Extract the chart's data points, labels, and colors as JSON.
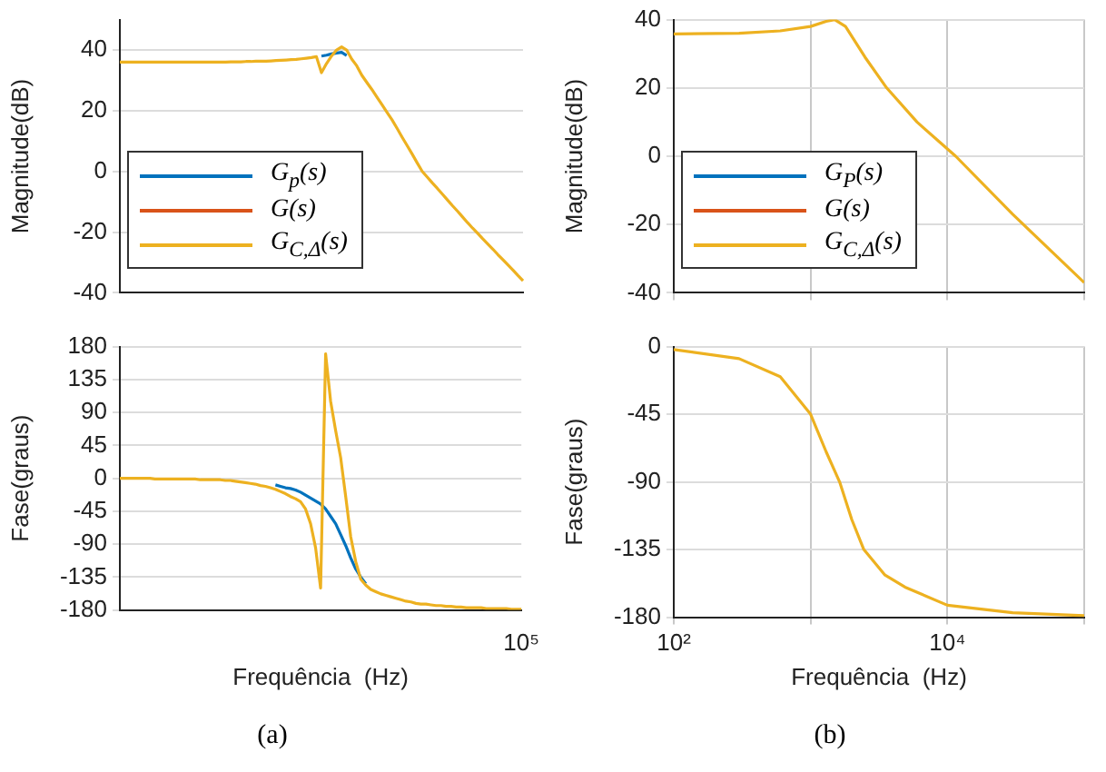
{
  "chart_data": [
    {
      "type": "line",
      "ylabel": "Magnitude(dB)",
      "categories": [
        null,
        null,
        null,
        null,
        null,
        null,
        null,
        null,
        null,
        null,
        null,
        null,
        null,
        null,
        null,
        null,
        null,
        null,
        null,
        null,
        null,
        null,
        null,
        null,
        null,
        null,
        null,
        null,
        null,
        null,
        null,
        null,
        null,
        null,
        null,
        null,
        null,
        null,
        null,
        null,
        null,
        null,
        null,
        null,
        null,
        null,
        null,
        null,
        null,
        null,
        null,
        null,
        null,
        null,
        null,
        null,
        null,
        null,
        null,
        null,
        null,
        null,
        null,
        null,
        null,
        null,
        null,
        null,
        null,
        null,
        null,
        null,
        null,
        null,
        null,
        null,
        null,
        null,
        null,
        null,
        null
      ],
      "ylim": [
        -40,
        50
      ],
      "yticks": [
        -40,
        -20,
        0,
        20,
        40
      ],
      "grid": "y",
      "legend": "bottom left",
      "marker": "none",
      "line_style": "solid",
      "tick_labels": "y",
      "series": [
        {
          "name": "G$_{p}$(s)",
          "color": "#0072bd",
          "values": [
            null,
            null,
            null,
            null,
            null,
            null,
            null,
            null,
            null,
            null,
            null,
            null,
            null,
            null,
            null,
            null,
            null,
            null,
            null,
            null,
            null,
            null,
            null,
            null,
            null,
            null,
            null,
            null,
            null,
            null,
            null,
            null,
            null,
            null,
            null,
            null,
            null,
            null,
            null,
            null,
            38,
            38.3,
            38.7,
            39,
            39.2,
            38.2,
            null,
            null,
            null,
            null,
            null,
            null,
            null,
            null,
            null,
            null,
            null,
            null,
            null,
            null,
            null,
            null,
            null,
            null,
            null,
            null,
            null,
            null,
            null,
            null,
            null,
            null,
            null,
            null,
            null,
            null,
            null,
            null,
            null,
            null,
            null
          ]
        },
        {
          "name": "G(s)",
          "color": "#d95319",
          "values": [
            null,
            null,
            null,
            null,
            null,
            null,
            null,
            null,
            null,
            null,
            null,
            null,
            null,
            null,
            null,
            null,
            null,
            null,
            null,
            null,
            null,
            null,
            null,
            null,
            null,
            null,
            null,
            null,
            null,
            null,
            null,
            null,
            null,
            null,
            null,
            null,
            null,
            null,
            null,
            null,
            null,
            null,
            null,
            null,
            null,
            null,
            null,
            null,
            null,
            null,
            null,
            null,
            null,
            null,
            null,
            null,
            null,
            null,
            null,
            null,
            null,
            null,
            null,
            null,
            null,
            null,
            null,
            null,
            null,
            null,
            null,
            null,
            null,
            null,
            null,
            null,
            null,
            null,
            null,
            null,
            null
          ]
        },
        {
          "name": "G$_{C,Δ}$(s)",
          "color": "#edb120",
          "values": [
            36,
            36,
            36,
            36,
            36,
            36,
            36,
            36,
            36,
            36,
            36,
            36,
            36,
            36,
            36,
            36,
            36,
            36,
            36,
            36,
            36,
            36,
            36.1,
            36.1,
            36.1,
            36.2,
            36.2,
            36.3,
            36.3,
            36.3,
            36.4,
            36.5,
            36.6,
            36.7,
            36.8,
            36.9,
            37.1,
            37.3,
            37.5,
            37.8,
            32.5,
            35.5,
            38,
            40,
            41,
            40,
            37,
            34.8,
            31.7,
            29.3,
            27,
            24.5,
            22,
            19.5,
            17,
            14.2,
            11.3,
            8.5,
            5.7,
            2.8,
            0,
            -1.9,
            -3.8,
            -5.6,
            -7.5,
            -9.4,
            -11.3,
            -13.1,
            -15,
            -16.9,
            -18.7,
            -20.4,
            -22.2,
            -23.9,
            -25.6,
            -27.4,
            -29.1,
            -30.8,
            -32.5,
            -34.3,
            -36
          ]
        }
      ]
    },
    {
      "type": "line",
      "xlabel": "Frequência  (Hz)",
      "ylabel": "Fase(graus)",
      "annotations": [
        "(a)"
      ],
      "categories": [
        null,
        null,
        null,
        null,
        null,
        null,
        null,
        null,
        null,
        null,
        null,
        null,
        null,
        null,
        null,
        null,
        null,
        null,
        null,
        null,
        null,
        null,
        null,
        null,
        null,
        null,
        null,
        null,
        null,
        null,
        null,
        null,
        null,
        null,
        null,
        null,
        null,
        null,
        null,
        null,
        null,
        null,
        null,
        null,
        null,
        null,
        null,
        null,
        null,
        null,
        null,
        null,
        null,
        null,
        null,
        null,
        null,
        null,
        null,
        null,
        null,
        null,
        null,
        null,
        null,
        null,
        null,
        null,
        null,
        null,
        null,
        null,
        null,
        null,
        null,
        null,
        null,
        null,
        null,
        null,
        "10⁵"
      ],
      "ylim": [
        -180,
        180
      ],
      "yticks": [
        -180,
        -135,
        -90,
        -45,
        0,
        45,
        90,
        135,
        180
      ],
      "grid": "y",
      "marker": "none",
      "line_style": "solid",
      "series": [
        {
          "color": "#0072bd",
          "values": [
            null,
            null,
            null,
            null,
            null,
            null,
            null,
            null,
            null,
            null,
            null,
            null,
            null,
            null,
            null,
            null,
            null,
            null,
            null,
            null,
            null,
            null,
            null,
            null,
            null,
            null,
            null,
            null,
            null,
            null,
            null,
            -9,
            -11,
            -13,
            -14,
            -16,
            -19,
            -23,
            -27,
            -31,
            -35,
            -42,
            -52,
            -62,
            -77,
            -92,
            -109,
            -124,
            -135,
            -144,
            null,
            null,
            null,
            null,
            null,
            null,
            null,
            null,
            null,
            null,
            null,
            null,
            null,
            null,
            null,
            null,
            null,
            null,
            null,
            null,
            null,
            null,
            null,
            null,
            null,
            null,
            null,
            null,
            null,
            null,
            null
          ]
        },
        {
          "color": "#edb120",
          "values": [
            0,
            0,
            0,
            0,
            0,
            0,
            0,
            -1,
            -1,
            -1,
            -1,
            -1,
            -1,
            -1,
            -1,
            -1,
            -2,
            -2,
            -2,
            -2,
            -2,
            -3,
            -3,
            -4,
            -5,
            -6,
            -7,
            -8,
            -10,
            -11,
            -13,
            -15,
            -18,
            -21,
            -25,
            -28,
            -32,
            -42,
            -62,
            -95,
            -150,
            170,
            105,
            65,
            28,
            -25,
            -80,
            -114,
            -138,
            -146,
            -152,
            -155,
            -158,
            -160,
            -162,
            -164,
            -166,
            -168,
            -169,
            -171,
            -172,
            -172,
            -173,
            -174,
            -174,
            -175,
            -175,
            -176,
            -176,
            -177,
            -177,
            -177,
            -177,
            -178,
            -178,
            -178,
            -178,
            -178,
            -179,
            -179,
            -179
          ]
        }
      ]
    },
    {
      "type": "line",
      "ylabel": "Magnitude(dB)",
      "log": "x",
      "xlim": [
        100,
        100000
      ],
      "xticks": [
        {
          "value": 100,
          "label": null
        },
        {
          "value": 1000,
          "label": null
        },
        {
          "value": 10000,
          "label": null
        },
        {
          "value": 100000,
          "label": null
        }
      ],
      "ylim": [
        -40,
        40
      ],
      "yticks": [
        -40,
        -20,
        0,
        20,
        40
      ],
      "grid": true,
      "legend": "bottom left",
      "marker": "none",
      "line_style": "solid",
      "tick_labels": "y",
      "series": [
        {
          "name": "G$_{P}$(s)",
          "color": "#0072bd",
          "values": [
            null,
            null
          ]
        },
        {
          "name": "G(s)",
          "color": "#d95319",
          "values": [
            null,
            null
          ]
        },
        {
          "name": "G$_{C,Δ}$(s)",
          "color": "#edb120",
          "x": [
            100,
            300,
            600,
            1000,
            1300,
            1500,
            1800,
            2500,
            3600,
            6000,
            11500,
            30000,
            100000
          ],
          "values": [
            35.8,
            36,
            36.7,
            38,
            39.5,
            40,
            38,
            29,
            20,
            10,
            0,
            -17,
            -37
          ]
        }
      ]
    },
    {
      "type": "line",
      "xlabel": "Frequência  (Hz)",
      "ylabel": "Fase(graus)",
      "annotations": [
        "(b)"
      ],
      "log": "x",
      "xlim": [
        100,
        100000
      ],
      "xticks": [
        {
          "value": 100,
          "label": "10²"
        },
        {
          "value": 1000,
          "label": null
        },
        {
          "value": 10000,
          "label": "10⁴"
        },
        {
          "value": 100000,
          "label": null
        }
      ],
      "ylim": [
        -180,
        0
      ],
      "yticks": [
        -180,
        -135,
        -90,
        -45,
        0
      ],
      "grid": true,
      "marker": "none",
      "line_style": "solid",
      "series": [
        {
          "color": "#edb120",
          "x": [
            100,
            300,
            600,
            1000,
            1300,
            1630,
            2000,
            2450,
            3500,
            4900,
            10000,
            30000,
            100000
          ],
          "values": [
            -2,
            -8,
            -20,
            -45,
            -70,
            -90,
            -115,
            -135,
            -152,
            -160,
            -172,
            -177,
            -179
          ]
        }
      ]
    }
  ]
}
